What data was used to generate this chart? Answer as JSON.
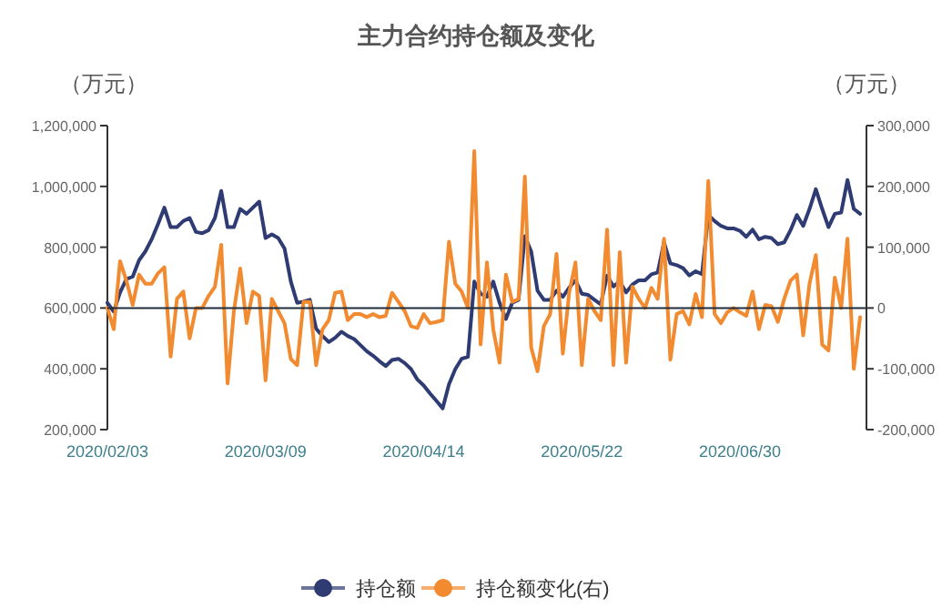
{
  "chart_data": {
    "type": "line",
    "title": "主力合约持仓额及变化",
    "ylabel": "（万元）",
    "y2label": "（万元）",
    "categories": [
      "2020/02/03",
      null,
      null,
      null,
      null,
      null,
      null,
      null,
      null,
      null,
      null,
      null,
      null,
      null,
      null,
      null,
      null,
      null,
      null,
      null,
      null,
      null,
      null,
      null,
      null,
      "2020/03/09",
      null,
      null,
      null,
      null,
      null,
      null,
      null,
      null,
      null,
      null,
      null,
      null,
      null,
      null,
      null,
      null,
      null,
      null,
      null,
      null,
      null,
      null,
      null,
      null,
      "2020/04/14",
      null,
      null,
      null,
      null,
      null,
      null,
      null,
      null,
      null,
      null,
      null,
      null,
      null,
      null,
      null,
      null,
      null,
      null,
      null,
      null,
      null,
      null,
      null,
      null,
      "2020/05/22",
      null,
      null,
      null,
      null,
      null,
      null,
      null,
      null,
      null,
      null,
      null,
      null,
      null,
      null,
      null,
      null,
      null,
      null,
      null,
      null,
      null,
      null,
      null,
      null,
      "2020/06/30",
      null,
      null,
      null,
      null,
      null,
      null,
      null,
      null,
      null,
      null,
      null,
      null,
      null,
      null,
      null,
      null,
      null,
      null,
      null
    ],
    "series": [
      {
        "name": "持仓额",
        "color": "#2f3b73",
        "values": [
          617000,
          588000,
          651000,
          695000,
          703000,
          757000,
          786000,
          826000,
          876000,
          930000,
          866000,
          866000,
          886000,
          896000,
          850000,
          846000,
          856000,
          896000,
          985000,
          866000,
          866000,
          926000,
          910000,
          930000,
          950000,
          830000,
          842000,
          830000,
          796000,
          687000,
          617000,
          621000,
          627000,
          532000,
          508000,
          488000,
          502000,
          522000,
          508000,
          498000,
          478000,
          458000,
          443000,
          425000,
          409000,
          429000,
          433000,
          419000,
          399000,
          365000,
          345000,
          319000,
          295000,
          270000,
          349000,
          399000,
          433000,
          439000,
          687000,
          647000,
          637000,
          687000,
          617000,
          564000,
          617000,
          627000,
          836000,
          786000,
          657000,
          627000,
          627000,
          657000,
          637000,
          667000,
          691000,
          647000,
          643000,
          627000,
          612000,
          707000,
          671000,
          687000,
          651000,
          677000,
          691000,
          691000,
          711000,
          717000,
          816000,
          747000,
          741000,
          731000,
          707000,
          721000,
          711000,
          906000,
          886000,
          870000,
          862000,
          862000,
          854000,
          834000,
          858000,
          826000,
          834000,
          830000,
          810000,
          816000,
          856000,
          906000,
          870000,
          926000,
          991000,
          926000,
          866000,
          910000,
          914000,
          1021000,
          926000,
          910000
        ]
      },
      {
        "name": "持仓额变化(右)",
        "color": "#f28a30",
        "axis": "y2",
        "values": [
          0,
          -35000,
          77000,
          45000,
          5000,
          55000,
          40000,
          40000,
          57000,
          67000,
          -80000,
          15000,
          27000,
          -50000,
          0,
          0,
          20000,
          35000,
          104000,
          -124000,
          -5000,
          65000,
          -25000,
          27000,
          20000,
          -119000,
          15000,
          -5000,
          -25000,
          -84000,
          -94000,
          10000,
          10000,
          -94000,
          -35000,
          -20000,
          25000,
          27000,
          -20000,
          -10000,
          -10000,
          -15000,
          -10000,
          -15000,
          -13000,
          25000,
          10000,
          -5000,
          -30000,
          -33000,
          -10000,
          -25000,
          -23000,
          -20000,
          109000,
          40000,
          27000,
          0,
          258000,
          -60000,
          75000,
          -35000,
          -90000,
          55000,
          10000,
          15000,
          216000,
          -65000,
          -104000,
          -30000,
          -10000,
          89000,
          -75000,
          25000,
          75000,
          -94000,
          15000,
          -5000,
          -20000,
          129000,
          -94000,
          92000,
          -90000,
          35000,
          15000,
          0,
          33000,
          15000,
          114000,
          -85000,
          -10000,
          -5000,
          -27000,
          23000,
          -15000,
          209000,
          -10000,
          -25000,
          -7000,
          0,
          -7000,
          -13000,
          27000,
          -35000,
          5000,
          3000,
          -23000,
          15000,
          45000,
          55000,
          -45000,
          40000,
          87000,
          -60000,
          -70000,
          50000,
          0,
          114000,
          -100000,
          -15000
        ]
      }
    ],
    "ylim": [
      200000,
      1200000
    ],
    "yticks": [
      {
        "value": 200000,
        "label": "200,000"
      },
      {
        "value": 400000,
        "label": "400,000"
      },
      {
        "value": 600000,
        "label": "600,000"
      },
      {
        "value": 800000,
        "label": "800,000"
      },
      {
        "value": 1000000,
        "label": "1,000,000"
      },
      {
        "value": 1200000,
        "label": "1,200,000"
      }
    ],
    "y2lim": [
      -200000,
      300000
    ],
    "y2ticks": [
      {
        "value": -200000,
        "label": "-200,000"
      },
      {
        "value": -100000,
        "label": "-100,000"
      },
      0,
      {
        "value": 100000,
        "label": "100,000"
      },
      {
        "value": 200000,
        "label": "200,000"
      },
      {
        "value": 300000,
        "label": "300,000"
      }
    ],
    "ref_lines": [
      {
        "axis": "y2",
        "value": 0,
        "color": "#1f2d3d"
      }
    ],
    "legend": "bottom",
    "grid": false
  }
}
